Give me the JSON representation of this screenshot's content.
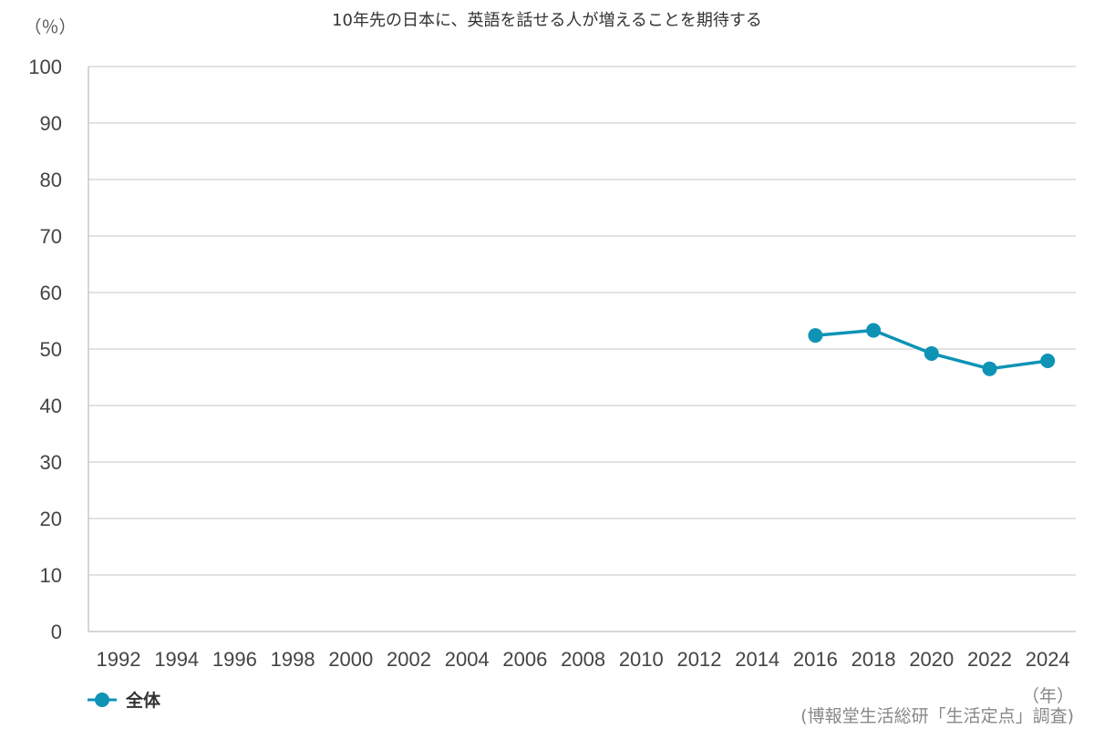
{
  "chart_data": {
    "type": "line",
    "title": "10年先の日本に、英語を話せる人が増えることを期待する",
    "y_unit_label": "（％）",
    "x_unit_label": "（年）",
    "source_note": "(博報堂生活総研「生活定点」調査)",
    "categories": [
      "1992",
      "1994",
      "1996",
      "1998",
      "2000",
      "2002",
      "2004",
      "2006",
      "2008",
      "2010",
      "2012",
      "2014",
      "2016",
      "2018",
      "2020",
      "2022",
      "2024"
    ],
    "series": [
      {
        "name": "全体",
        "color": "#0e93b5",
        "values": [
          null,
          null,
          null,
          null,
          null,
          null,
          null,
          null,
          null,
          null,
          null,
          null,
          52.4,
          53.3,
          49.2,
          46.5,
          47.9
        ]
      }
    ],
    "ylim": [
      0,
      100
    ],
    "yticks": [
      0,
      10,
      20,
      30,
      40,
      50,
      60,
      70,
      80,
      90,
      100
    ],
    "grid": true,
    "legend_position": "bottom-left"
  }
}
